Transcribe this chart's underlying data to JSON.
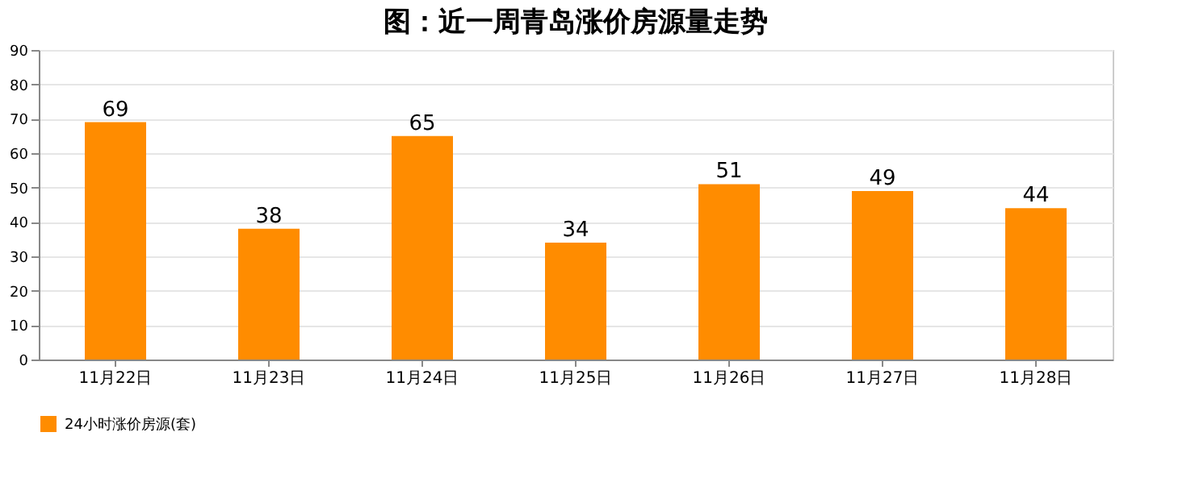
{
  "chart_data": {
    "type": "bar",
    "title": "图：近一周青岛涨价房源量走势",
    "categories": [
      "11月22日",
      "11月23日",
      "11月24日",
      "11月25日",
      "11月26日",
      "11月27日",
      "11月28日"
    ],
    "series": [
      {
        "name": "24小时涨价房源(套)",
        "color": "#ff8c00",
        "values": [
          69,
          38,
          65,
          34,
          51,
          49,
          44
        ]
      }
    ],
    "ylim": [
      0,
      90
    ],
    "yticks": [
      0,
      10,
      20,
      30,
      40,
      50,
      60,
      70,
      80,
      90
    ],
    "grid": "y",
    "legend": "bottom",
    "data_labels": true
  }
}
